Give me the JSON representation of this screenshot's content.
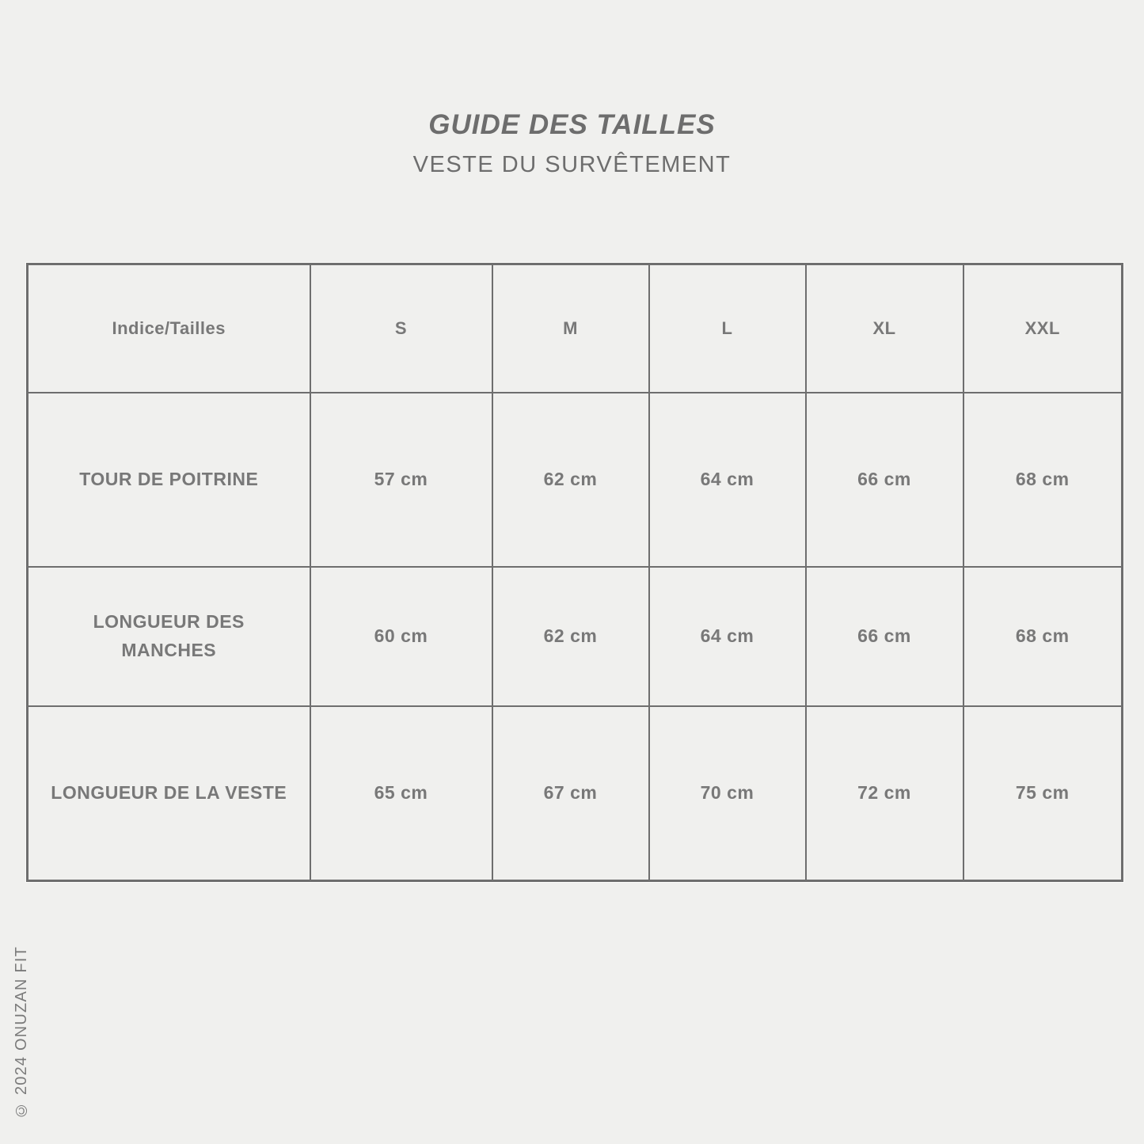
{
  "header": {
    "title": "GUIDE DES TAILLES",
    "subtitle": "VESTE DU SURVÊTEMENT"
  },
  "table": {
    "columns": [
      "Indice/Tailles",
      "S",
      "M",
      "L",
      "XL",
      "XXL"
    ],
    "rows": [
      {
        "label": "TOUR DE POITRINE",
        "values": [
          "57 cm",
          "62 cm",
          "64 cm",
          "66 cm",
          "68 cm"
        ]
      },
      {
        "label": "LONGUEUR DES\nMANCHES",
        "values": [
          "60 cm",
          "62 cm",
          "64 cm",
          "66 cm",
          "68 cm"
        ]
      },
      {
        "label": "LONGUEUR DE LA VESTE",
        "values": [
          "65 cm",
          "67 cm",
          "70 cm",
          "72 cm",
          "75 cm"
        ]
      }
    ]
  },
  "footer": {
    "copyright": "© 2024 ONUZAN FIT"
  },
  "colors": {
    "background": "#f0f0ee",
    "border": "#6e6e6e",
    "text": "#787878",
    "title": "#6d6d6d"
  }
}
